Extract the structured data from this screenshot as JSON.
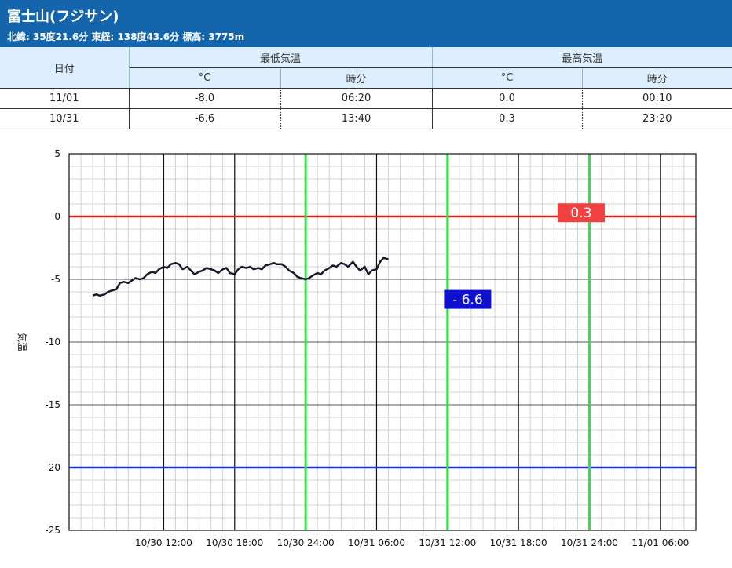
{
  "header": {
    "title": "富士山(フジサン)",
    "subtitle": "北緯: 35度21.6分 東経: 138度43.6分 標高: 3775m",
    "bg_color": "#1565ad"
  },
  "table": {
    "date_header": "日付",
    "min_header": "最低気温",
    "max_header": "最高気温",
    "unit_c": "°C",
    "unit_time": "時分",
    "rows": [
      {
        "date": "11/01",
        "min_c": "-8.0",
        "min_time": "06:20",
        "max_c": "0.0",
        "max_time": "00:10"
      },
      {
        "date": "10/31",
        "min_c": "-6.6",
        "min_time": "13:40",
        "max_c": "0.3",
        "max_time": "23:20"
      }
    ]
  },
  "chart_data": {
    "type": "line",
    "ylabel": "気温",
    "xlabel": "",
    "title": "",
    "ylim": [
      -25,
      5
    ],
    "yticks": [
      5,
      0,
      -5,
      -10,
      -15,
      -20,
      -25
    ],
    "xlim_hours": [
      8.0,
      31.0
    ],
    "x_ticks": [
      {
        "hour": 12,
        "label": "10/30 12:00"
      },
      {
        "hour": 18,
        "label": "10/30 18:00"
      },
      {
        "hour": 24,
        "label": "10/30 24:00"
      },
      {
        "hour": 30,
        "label": "10/31 06:00"
      },
      {
        "hour": 36,
        "label": "10/31 12:00"
      },
      {
        "hour": 42,
        "label": "10/31 18:00"
      },
      {
        "hour": 48,
        "label": "10/31 24:00"
      },
      {
        "hour": 54,
        "label": "11/01 06:00"
      }
    ],
    "green_lines_hours": [
      24,
      36,
      48
    ],
    "reference_lines": [
      {
        "y": 0,
        "color": "#d42020"
      },
      {
        "y": -20,
        "color": "#2030d0"
      }
    ],
    "min_label": {
      "text": "- 6.6",
      "hour": 37.7,
      "value": -6.6,
      "color": "#1010d0"
    },
    "max_label": {
      "text": "0.3",
      "hour": 47.3,
      "value": 0.3,
      "color": "#f24040"
    },
    "line_color": "#1a1a2e",
    "series": [
      {
        "points": [
          [
            6.0,
            -6.3
          ],
          [
            6.3,
            -6.2
          ],
          [
            6.6,
            -6.3
          ],
          [
            7.0,
            -6.2
          ],
          [
            7.3,
            -6.0
          ],
          [
            7.6,
            -5.9
          ],
          [
            8.0,
            -5.8
          ],
          [
            8.3,
            -5.3
          ],
          [
            8.6,
            -5.2
          ],
          [
            9.0,
            -5.3
          ],
          [
            9.3,
            -5.1
          ],
          [
            9.6,
            -4.9
          ],
          [
            10.0,
            -5.0
          ],
          [
            10.3,
            -4.9
          ],
          [
            10.6,
            -4.6
          ],
          [
            11.0,
            -4.4
          ],
          [
            11.3,
            -4.5
          ],
          [
            11.6,
            -4.2
          ],
          [
            12.0,
            -4.0
          ],
          [
            12.3,
            -4.1
          ],
          [
            12.6,
            -3.8
          ],
          [
            13.0,
            -3.7
          ],
          [
            13.3,
            -3.8
          ],
          [
            13.6,
            -4.2
          ],
          [
            14.0,
            -4.0
          ],
          [
            14.3,
            -4.3
          ],
          [
            14.6,
            -4.6
          ],
          [
            15.0,
            -4.4
          ],
          [
            15.3,
            -4.3
          ],
          [
            15.6,
            -4.1
          ],
          [
            16.0,
            -4.2
          ],
          [
            16.3,
            -4.3
          ],
          [
            16.6,
            -4.5
          ],
          [
            17.0,
            -4.2
          ],
          [
            17.3,
            -4.1
          ],
          [
            17.6,
            -4.5
          ],
          [
            18.0,
            -4.6
          ],
          [
            18.3,
            -4.2
          ],
          [
            18.6,
            -4.0
          ],
          [
            19.0,
            -4.1
          ],
          [
            19.3,
            -4.0
          ],
          [
            19.6,
            -4.2
          ],
          [
            20.0,
            -4.1
          ],
          [
            20.3,
            -4.2
          ],
          [
            20.6,
            -3.9
          ],
          [
            21.0,
            -3.8
          ],
          [
            21.3,
            -3.7
          ],
          [
            21.6,
            -3.8
          ],
          [
            22.0,
            -3.8
          ],
          [
            22.3,
            -4.0
          ],
          [
            22.6,
            -4.3
          ],
          [
            23.0,
            -4.5
          ],
          [
            23.3,
            -4.8
          ],
          [
            23.6,
            -4.9
          ],
          [
            24.0,
            -5.0
          ],
          [
            24.3,
            -4.9
          ],
          [
            24.6,
            -4.7
          ],
          [
            25.0,
            -4.5
          ],
          [
            25.3,
            -4.6
          ],
          [
            25.6,
            -4.3
          ],
          [
            26.0,
            -4.1
          ],
          [
            26.3,
            -3.9
          ],
          [
            26.6,
            -4.0
          ],
          [
            27.0,
            -3.7
          ],
          [
            27.3,
            -3.8
          ],
          [
            27.6,
            -4.0
          ],
          [
            28.0,
            -3.6
          ],
          [
            28.3,
            -4.0
          ],
          [
            28.6,
            -4.3
          ],
          [
            29.0,
            -4.0
          ],
          [
            29.3,
            -4.6
          ],
          [
            29.6,
            -4.3
          ],
          [
            30.0,
            -4.2
          ],
          [
            30.3,
            -3.6
          ],
          [
            30.6,
            -3.3
          ],
          [
            31.0,
            -3.4
          ]
        ]
      }
    ]
  }
}
